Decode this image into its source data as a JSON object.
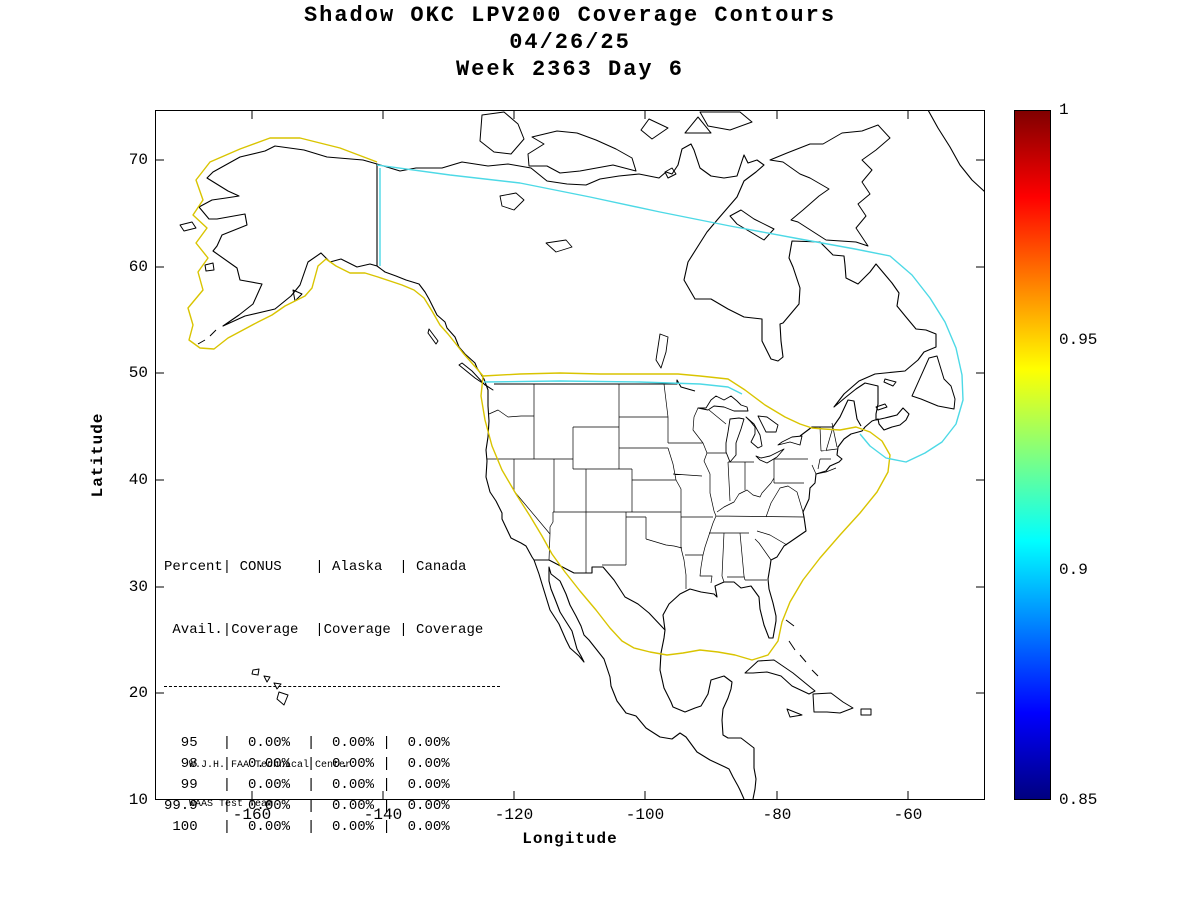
{
  "credit_lines": [
    "W.J.H. FAA Technical Center",
    "WAAS Test Team"
  ],
  "chart_data": {
    "type": "heatmap",
    "subtype": "geographic contour map of WAAS LPV200 coverage over North America",
    "title": "Shadow OKC LPV200 Coverage Contours",
    "date": "04/26/25",
    "week_day": "Week 2363 Day 6",
    "xlabel": "Longitude",
    "ylabel": "Latitude",
    "xlim": [
      -175,
      -48
    ],
    "ylim": [
      10,
      75
    ],
    "xticks": [
      -160,
      -140,
      -120,
      -100,
      -80,
      -60
    ],
    "yticks": [
      70,
      60,
      50,
      40,
      30,
      20,
      10
    ],
    "xtick_labels": [
      "-160",
      "-140",
      "-120",
      "-100",
      "-80",
      "-60"
    ],
    "ytick_labels": [
      "70",
      "60",
      "50",
      "40",
      "30",
      "20",
      "10"
    ],
    "grid": false,
    "legend_position": "none",
    "basemap": "North America coastlines with US state, Canada and Mexico borders",
    "colorbar": {
      "min": 0.85,
      "max": 1,
      "tick_labels": [
        "1",
        "0.95",
        "0.9",
        "0.85"
      ],
      "colormap": "jet",
      "position": "right"
    },
    "contour_levels": [
      {
        "level": 0.95,
        "color": "#D9C400"
      },
      {
        "level": 0.9,
        "color": "#4DD9E6"
      }
    ],
    "coverage_table": {
      "header_line1": "Percent| CONUS    | Alaska  | Canada",
      "header_line2": " Avail.|Coverage  |Coverage | Coverage",
      "columns": [
        "Percent Avail.",
        "CONUS Coverage",
        "Alaska Coverage",
        "Canada Coverage"
      ],
      "rows": [
        {
          "avail": "95",
          "conus": "0.00%",
          "alaska": "0.00%",
          "canada": "0.00%"
        },
        {
          "avail": "98",
          "conus": "0.00%",
          "alaska": "0.00%",
          "canada": "0.00%"
        },
        {
          "avail": "99",
          "conus": "0.00%",
          "alaska": "0.00%",
          "canada": "0.00%"
        },
        {
          "avail": "99.9",
          "conus": "0.00%",
          "alaska": "0.00%",
          "canada": "0.00%"
        },
        {
          "avail": "100",
          "conus": "0.00%",
          "alaska": "0.00%",
          "canada": "0.00%"
        }
      ]
    }
  }
}
